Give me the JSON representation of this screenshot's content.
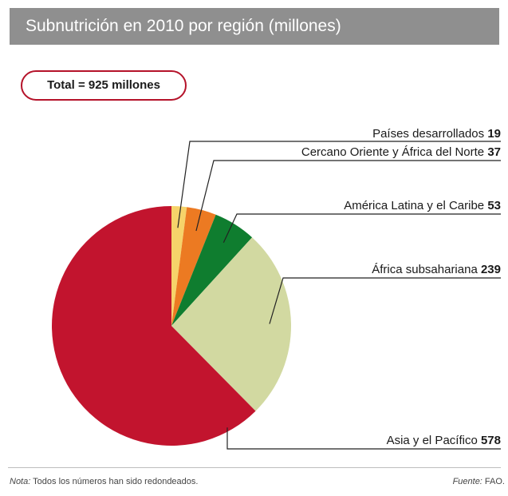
{
  "chart_data": {
    "type": "pie",
    "title": "Subnutrición en 2010 por región (millones)",
    "total_label": "Total = 925 millones",
    "slices": [
      {
        "label": "Países desarrollados",
        "value": 19,
        "value_label": "19",
        "color": "#f6d36a"
      },
      {
        "label": "Cercano Oriente y África del Norte",
        "value": 37,
        "value_label": "37",
        "color": "#ec7a22"
      },
      {
        "label": "América Latina y el Caribe",
        "value": 53,
        "value_label": "53",
        "color": "#0f7d2f"
      },
      {
        "label": "África subsahariana",
        "value": 239,
        "value_label": "239",
        "color": "#d2d9a1"
      },
      {
        "label": "Asia y el Pacífico",
        "value": 578,
        "value_label": "578",
        "color": "#c2142e"
      }
    ]
  },
  "footer": {
    "note_prefix": "Nota:",
    "note_text": " Todos los números han sido redondeados.",
    "source_prefix": "Fuente:",
    "source_text": " FAO."
  }
}
